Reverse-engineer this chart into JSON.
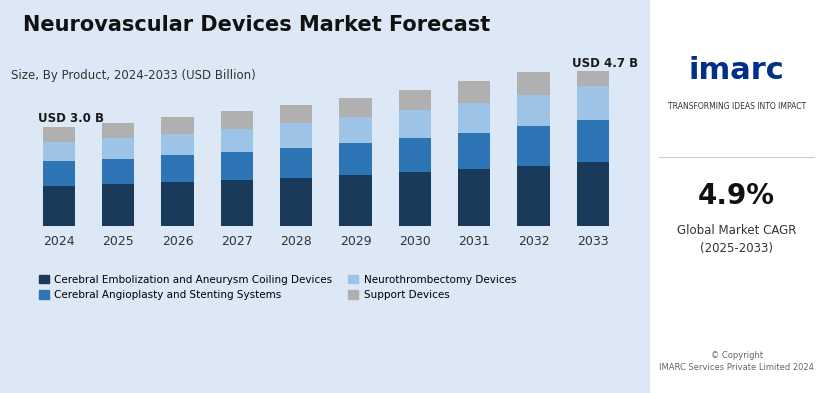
{
  "title": "Neurovascular Devices Market Forecast",
  "subtitle": "Size, By Product, 2024-2033 (USD Billion)",
  "years": [
    2024,
    2025,
    2026,
    2027,
    2028,
    2029,
    2030,
    2031,
    2032,
    2033
  ],
  "series": {
    "Cerebral Embolization and Aneurysm Coiling Devices": [
      1.2,
      1.25,
      1.32,
      1.38,
      1.45,
      1.53,
      1.62,
      1.71,
      1.82,
      1.93
    ],
    "Cerebral Angioplasty and Stenting Systems": [
      0.75,
      0.78,
      0.82,
      0.87,
      0.92,
      0.98,
      1.05,
      1.12,
      1.2,
      1.28
    ],
    "Neurothrombectomy Devices": [
      0.6,
      0.63,
      0.66,
      0.7,
      0.74,
      0.79,
      0.84,
      0.9,
      0.96,
      1.03
    ],
    "Support Devices": [
      0.45,
      0.47,
      0.5,
      0.53,
      0.56,
      0.59,
      0.62,
      0.66,
      0.7,
      0.46
    ]
  },
  "colors": {
    "Cerebral Embolization and Aneurysm Coiling Devices": "#1a3a5c",
    "Cerebral Angioplasty and Stenting Systems": "#2e75b6",
    "Neurothrombectomy Devices": "#9dc3e6",
    "Support Devices": "#b0b0b0"
  },
  "label_2024": "USD 3.0 B",
  "label_2033": "USD 4.7 B",
  "ylim": [
    0,
    5.5
  ],
  "background_color": "#dce8f5",
  "bar_width": 0.55
}
